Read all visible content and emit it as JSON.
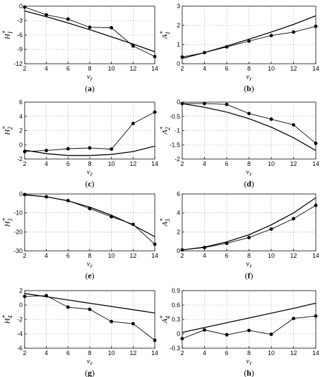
{
  "chart_data": [
    {
      "type": "line",
      "letter": "(a)",
      "ylabel": "H",
      "ylabel_sub": "1",
      "ylabel_sup": "*",
      "xlabel": "v",
      "xlabel_sub": "r",
      "xlim": [
        2,
        14
      ],
      "ylim": [
        -12,
        0
      ],
      "xticks": [
        2,
        4,
        6,
        8,
        10,
        12,
        14
      ],
      "yticks": [
        0,
        -3,
        -6,
        -9,
        -12
      ],
      "grid": true,
      "series": [
        {
          "kind": "data",
          "x": [
            2,
            4,
            6,
            8,
            10,
            12,
            14
          ],
          "y": [
            -0.2,
            -1.8,
            -2.7,
            -4.4,
            -4.5,
            -8.3,
            -10.5
          ]
        },
        {
          "kind": "fit",
          "x": [
            2,
            4,
            6,
            8,
            10,
            12,
            14
          ],
          "y": [
            -1.0,
            -2.2,
            -3.5,
            -4.9,
            -6.4,
            -7.9,
            -9.5
          ]
        }
      ]
    },
    {
      "type": "line",
      "letter": "(b)",
      "ylabel": "A",
      "ylabel_sub": "1",
      "ylabel_sup": "*",
      "xlabel": "v",
      "xlabel_sub": "r",
      "xlim": [
        2,
        14
      ],
      "ylim": [
        0,
        3
      ],
      "xticks": [
        2,
        4,
        6,
        8,
        10,
        12,
        14
      ],
      "yticks": [
        0,
        1,
        2,
        3
      ],
      "grid": true,
      "series": [
        {
          "kind": "data",
          "x": [
            2,
            4,
            6,
            8,
            10,
            12,
            14
          ],
          "y": [
            0.35,
            0.58,
            0.88,
            1.18,
            1.47,
            1.65,
            1.95
          ]
        },
        {
          "kind": "fit",
          "x": [
            2,
            4,
            6,
            8,
            10,
            12,
            14
          ],
          "y": [
            0.28,
            0.58,
            0.92,
            1.28,
            1.65,
            2.05,
            2.5
          ]
        }
      ]
    },
    {
      "type": "line",
      "letter": "(c)",
      "ylabel": "H",
      "ylabel_sub": "2",
      "ylabel_sup": "*",
      "xlabel": "v",
      "xlabel_sub": "r",
      "xlim": [
        2,
        14
      ],
      "ylim": [
        -2,
        6
      ],
      "xticks": [
        2,
        4,
        6,
        8,
        10,
        12,
        14
      ],
      "yticks": [
        -2,
        0,
        2,
        4,
        6
      ],
      "grid": true,
      "series": [
        {
          "kind": "data",
          "x": [
            2,
            4,
            6,
            8,
            10,
            12,
            14
          ],
          "y": [
            -0.95,
            -0.8,
            -0.55,
            -0.45,
            -0.6,
            3.0,
            4.6
          ]
        },
        {
          "kind": "fit",
          "x": [
            2,
            4,
            6,
            8,
            10,
            12,
            14
          ],
          "y": [
            -0.75,
            -1.25,
            -1.5,
            -1.5,
            -1.35,
            -0.95,
            -0.2
          ]
        }
      ]
    },
    {
      "type": "line",
      "letter": "(d)",
      "ylabel": "A",
      "ylabel_sub": "2",
      "ylabel_sup": "*",
      "xlabel": "v",
      "xlabel_sub": "r",
      "xlim": [
        2,
        14
      ],
      "ylim": [
        -2,
        0
      ],
      "xticks": [
        2,
        4,
        6,
        8,
        10,
        12,
        14
      ],
      "yticks": [
        0,
        -0.5,
        -1,
        -1.5,
        -2
      ],
      "grid": true,
      "series": [
        {
          "kind": "data",
          "x": [
            2,
            4,
            6,
            8,
            10,
            12,
            14
          ],
          "y": [
            -0.05,
            -0.05,
            -0.08,
            -0.4,
            -0.6,
            -0.8,
            -1.45
          ]
        },
        {
          "kind": "fit",
          "x": [
            2,
            4,
            6,
            8,
            10,
            12,
            14
          ],
          "y": [
            -0.05,
            -0.18,
            -0.35,
            -0.58,
            -0.88,
            -1.25,
            -1.7
          ]
        }
      ]
    },
    {
      "type": "line",
      "letter": "(e)",
      "ylabel": "H",
      "ylabel_sub": "3",
      "ylabel_sup": "*",
      "xlabel": "v",
      "xlabel_sub": "r",
      "xlim": [
        2,
        14
      ],
      "ylim": [
        -30,
        0
      ],
      "xticks": [
        2,
        4,
        6,
        8,
        10,
        12,
        14
      ],
      "yticks": [
        0,
        -10,
        -20,
        -30
      ],
      "grid": true,
      "series": [
        {
          "kind": "data",
          "x": [
            2,
            4,
            6,
            8,
            10,
            12,
            14
          ],
          "y": [
            -0.3,
            -1.5,
            -3.5,
            -7.7,
            -12.0,
            -16.0,
            -26.5
          ]
        },
        {
          "kind": "fit",
          "x": [
            2,
            4,
            6,
            8,
            10,
            12,
            14
          ],
          "y": [
            -0.5,
            -1.5,
            -3.6,
            -6.9,
            -11.2,
            -16.4,
            -22.5
          ]
        }
      ]
    },
    {
      "type": "line",
      "letter": "(f)",
      "ylabel": "A",
      "ylabel_sub": "3",
      "ylabel_sup": "*",
      "xlabel": "v",
      "xlabel_sub": "r",
      "xlim": [
        2,
        14
      ],
      "ylim": [
        0,
        6
      ],
      "xticks": [
        2,
        4,
        6,
        8,
        10,
        12,
        14
      ],
      "yticks": [
        0,
        2,
        4,
        6
      ],
      "grid": true,
      "series": [
        {
          "kind": "data",
          "x": [
            2,
            4,
            6,
            8,
            10,
            12,
            14
          ],
          "y": [
            0.1,
            0.35,
            0.8,
            1.4,
            2.3,
            3.4,
            4.8
          ]
        },
        {
          "kind": "fit",
          "x": [
            2,
            4,
            6,
            8,
            10,
            12,
            14
          ],
          "y": [
            0.1,
            0.4,
            0.95,
            1.7,
            2.75,
            4.0,
            5.6
          ]
        }
      ]
    },
    {
      "type": "line",
      "letter": "(g)",
      "ylabel": "H",
      "ylabel_sub": "4",
      "ylabel_sup": "*",
      "xlabel": "v",
      "xlabel_sub": "r",
      "xlim": [
        2,
        14
      ],
      "ylim": [
        -6,
        2
      ],
      "xticks": [
        2,
        4,
        6,
        8,
        10,
        12,
        14
      ],
      "yticks": [
        2,
        0,
        -2,
        -4,
        -6
      ],
      "grid": true,
      "series": [
        {
          "kind": "data",
          "x": [
            2,
            4,
            6,
            8,
            10,
            12,
            14
          ],
          "y": [
            1.2,
            1.3,
            -0.3,
            -0.6,
            -2.3,
            -2.6,
            -4.9
          ]
        },
        {
          "kind": "fit",
          "x": [
            2,
            4,
            6,
            8,
            10,
            12,
            14
          ],
          "y": [
            1.6,
            1.15,
            0.7,
            0.25,
            -0.2,
            -0.65,
            -1.1
          ]
        }
      ]
    },
    {
      "type": "line",
      "letter": "(h)",
      "ylabel": "A",
      "ylabel_sub": "4",
      "ylabel_sup": "*",
      "xlabel": "v",
      "xlabel_sub": "r",
      "xlim": [
        2,
        14
      ],
      "ylim": [
        -0.3,
        0.9
      ],
      "xticks": [
        2,
        4,
        6,
        8,
        10,
        12,
        14
      ],
      "yticks": [
        0.9,
        0.6,
        0.3,
        0,
        -0.3
      ],
      "grid": true,
      "series": [
        {
          "kind": "data",
          "x": [
            2,
            4,
            6,
            8,
            10,
            12,
            14
          ],
          "y": [
            -0.1,
            0.08,
            -0.02,
            0.07,
            -0.01,
            0.32,
            0.37
          ]
        },
        {
          "kind": "fit",
          "x": [
            2,
            4,
            6,
            8,
            10,
            12,
            14
          ],
          "y": [
            0.03,
            0.13,
            0.23,
            0.33,
            0.43,
            0.53,
            0.64
          ]
        }
      ]
    }
  ]
}
